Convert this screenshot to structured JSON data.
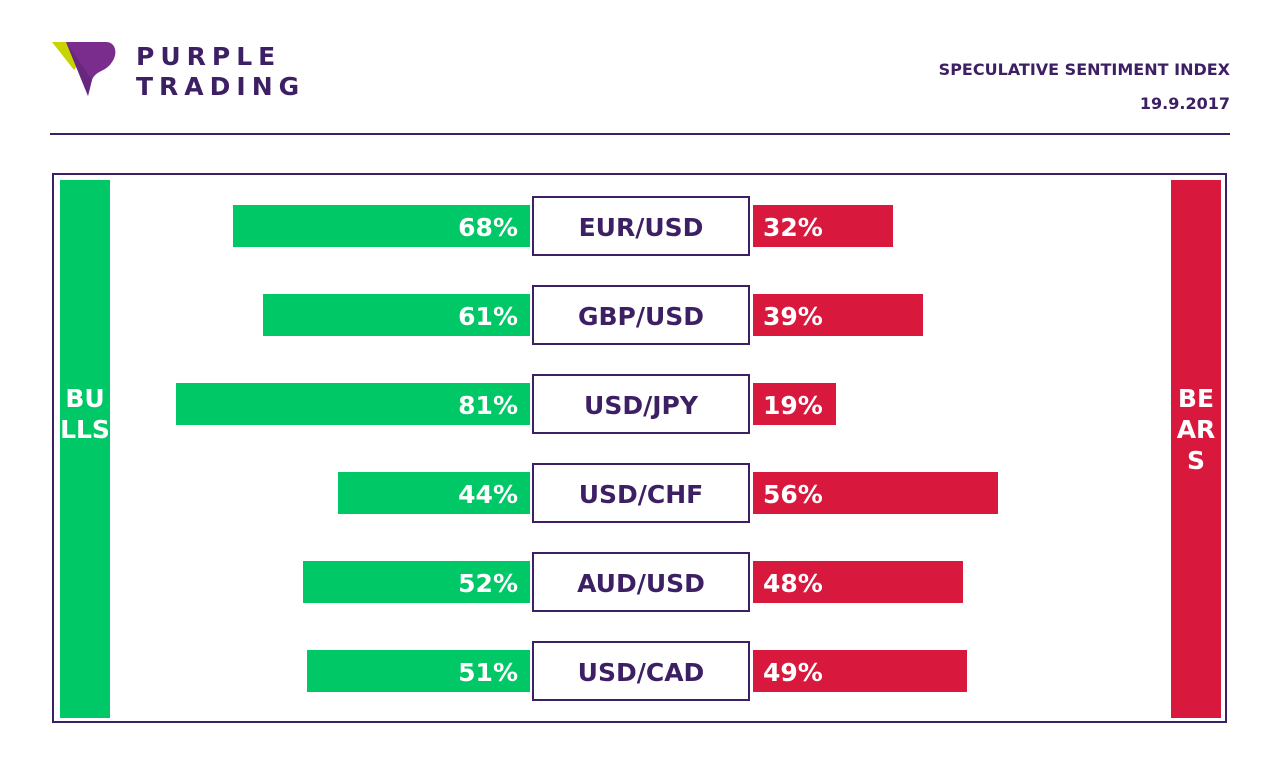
{
  "brand": {
    "line1": "PURPLE",
    "line2": "TRADING",
    "colors": {
      "purple": "#3d1f64",
      "violet": "#7b2d8e",
      "lime": "#c8d400"
    }
  },
  "header": {
    "title": "SPECULATIVE SENTIMENT INDEX",
    "date": "19.9.2017"
  },
  "labels": {
    "bulls": "BULLS",
    "bears": "BEARS"
  },
  "colors": {
    "bulls": "#00c866",
    "bears": "#d9183e",
    "text": "#3d1f64"
  },
  "chart_data": {
    "type": "bar",
    "categories": [
      "EUR/USD",
      "GBP/USD",
      "USD/JPY",
      "USD/CHF",
      "AUD/USD",
      "USD/CAD"
    ],
    "series": [
      {
        "name": "BULLS",
        "values": [
          68,
          61,
          81,
          44,
          52,
          51
        ]
      },
      {
        "name": "BEARS",
        "values": [
          32,
          39,
          19,
          56,
          48,
          49
        ]
      }
    ],
    "value_labels": {
      "bulls": [
        "68%",
        "61%",
        "81%",
        "44%",
        "52%",
        "51%"
      ],
      "bears": [
        "32%",
        "39%",
        "19%",
        "56%",
        "48%",
        "49%"
      ]
    },
    "ylim": [
      0,
      100
    ]
  }
}
